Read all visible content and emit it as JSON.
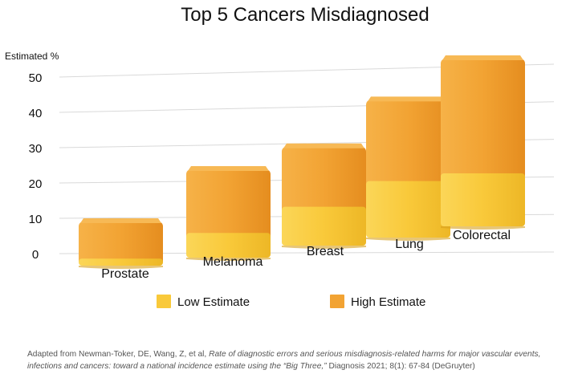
{
  "chart_data": {
    "type": "bar",
    "title": "Top 5 Cancers Misdiagnosed",
    "ylabel": "Estimated %",
    "xlabel": "",
    "ylim": [
      0,
      50
    ],
    "yticks": [
      0,
      10,
      20,
      30,
      40,
      50
    ],
    "categories": [
      "Prostate",
      "Melanoma",
      "Breast",
      "Lung",
      "Colorectal"
    ],
    "series": [
      {
        "name": "Low Estimate",
        "values": [
          2,
          7,
          11,
          16,
          15
        ]
      },
      {
        "name": "High Estimate",
        "values": [
          12.5,
          25,
          28,
          39,
          47.5
        ]
      }
    ],
    "grid": true,
    "legend": "bottom",
    "colors": {
      "low": "#F9C93A",
      "high": "#F2A333",
      "grid": "#d9d9d9"
    }
  },
  "footnote": {
    "prefix": "Adapted from Newman-Toker, DE, Wang, Z, et al, ",
    "italic": "Rate of diagnostic errors and serious misdiagnosis-related harms for major vascular events, infections and cancers: toward a national incidence estimate using the “Big Three,”",
    "suffix": " Diagnosis 2021; 8(1): 67-84 (DeGruyter)"
  }
}
